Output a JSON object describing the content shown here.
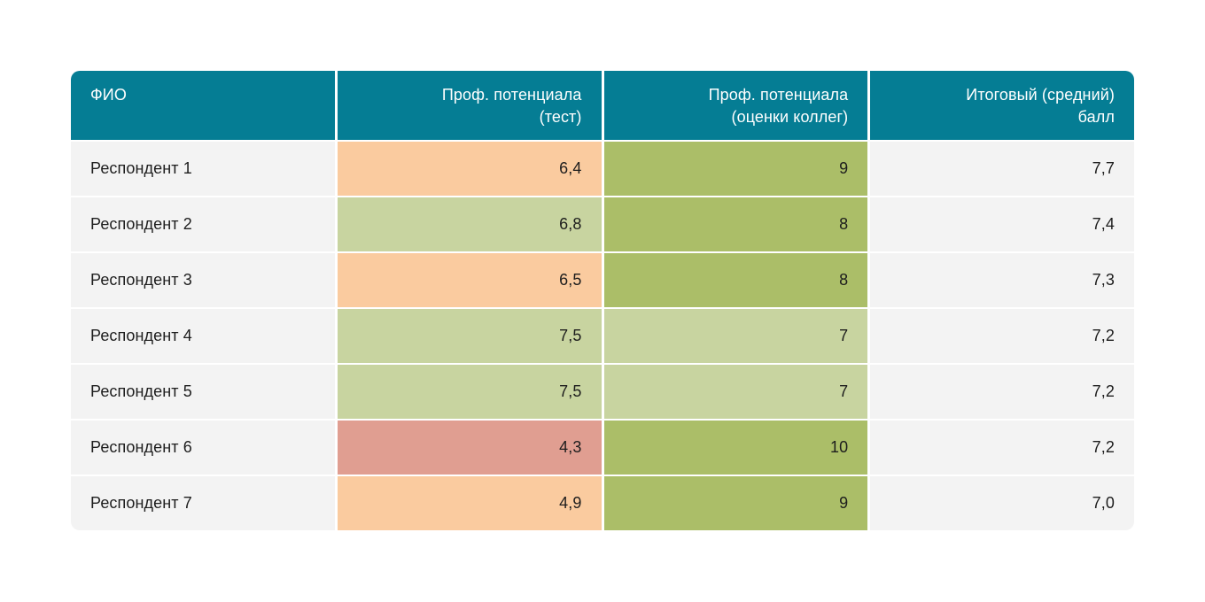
{
  "page": {
    "background": "#ffffff"
  },
  "table": {
    "header": {
      "bg": "#057d94",
      "text_color": "#ffffff",
      "columns": [
        {
          "id": "name",
          "label": "ФИО",
          "align": "left"
        },
        {
          "id": "test",
          "label": "Проф. потенциала\n(тест)",
          "align": "right"
        },
        {
          "id": "peers",
          "label": "Проф. потенциала\n(оценки коллег)",
          "align": "right"
        },
        {
          "id": "avg",
          "label": "Итоговый (средний)\nбалл",
          "align": "right"
        }
      ]
    },
    "cell_colors": {
      "neutral": "#f3f3f3",
      "orange": "#facb9f",
      "light_green": "#c8d4a0",
      "olive_green": "#abbe68",
      "salmon": "#e09e91"
    },
    "rows": [
      {
        "name": "Респондент 1",
        "test": "6,4",
        "test_color": "orange",
        "peers": "9",
        "peers_color": "olive_green",
        "avg": "7,7"
      },
      {
        "name": "Респондент 2",
        "test": "6,8",
        "test_color": "light_green",
        "peers": "8",
        "peers_color": "olive_green",
        "avg": "7,4"
      },
      {
        "name": "Респондент 3",
        "test": "6,5",
        "test_color": "orange",
        "peers": "8",
        "peers_color": "olive_green",
        "avg": "7,3"
      },
      {
        "name": "Респондент 4",
        "test": "7,5",
        "test_color": "light_green",
        "peers": "7",
        "peers_color": "light_green",
        "avg": "7,2"
      },
      {
        "name": "Респондент 5",
        "test": "7,5",
        "test_color": "light_green",
        "peers": "7",
        "peers_color": "light_green",
        "avg": "7,2"
      },
      {
        "name": "Респондент 6",
        "test": "4,3",
        "test_color": "salmon",
        "peers": "10",
        "peers_color": "olive_green",
        "avg": "7,2"
      },
      {
        "name": "Респондент 7",
        "test": "4,9",
        "test_color": "orange",
        "peers": "9",
        "peers_color": "olive_green",
        "avg": "7,0"
      }
    ]
  }
}
